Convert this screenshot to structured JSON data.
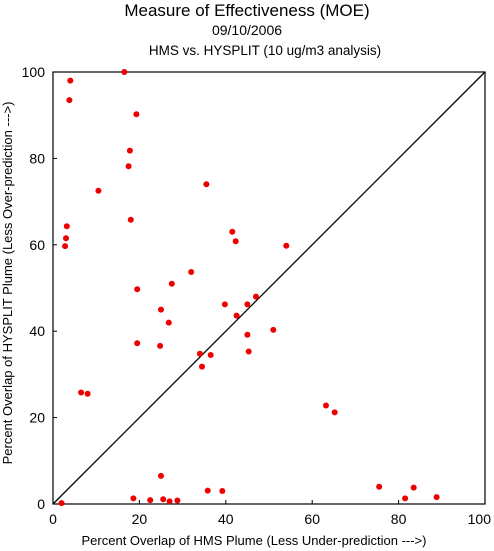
{
  "chart_data": {
    "type": "scatter",
    "title": "Measure of Effectiveness (MOE)",
    "subtitle_date": "09/10/2006",
    "subtitle": "HMS vs. HYSPLIT  (10 ug/m3 analysis)",
    "xlabel": "Percent Overlap of HMS Plume (Less Under-prediction --->)",
    "ylabel": "Percent Overlap of HYSPLIT Plume (Less Over-prediction --->)",
    "xlim": [
      0,
      100
    ],
    "ylim": [
      0,
      100
    ],
    "x_ticks": [
      "0",
      "20",
      "40",
      "60",
      "80",
      "100"
    ],
    "y_ticks": [
      "0",
      "20",
      "40",
      "60",
      "80",
      "100"
    ],
    "reference_line": "y = x diagonal",
    "point_color": "#ee0000",
    "series": [
      {
        "points": [
          [
            16.5,
            100
          ],
          [
            4,
            98
          ],
          [
            3.8,
            93.5
          ],
          [
            19.3,
            90.2
          ],
          [
            17.8,
            81.8
          ],
          [
            17.5,
            78.2
          ],
          [
            10.5,
            72.5
          ],
          [
            35.5,
            74
          ],
          [
            18,
            65.8
          ],
          [
            3.2,
            64.3
          ],
          [
            3,
            61.5
          ],
          [
            2.8,
            59.7
          ],
          [
            41.5,
            63
          ],
          [
            42.3,
            60.8
          ],
          [
            54,
            59.8
          ],
          [
            32,
            53.7
          ],
          [
            27.5,
            51
          ],
          [
            19.5,
            49.7
          ],
          [
            39.8,
            46.2
          ],
          [
            45,
            46.2
          ],
          [
            47,
            48
          ],
          [
            25,
            45
          ],
          [
            42.5,
            43.6
          ],
          [
            26.8,
            42
          ],
          [
            51,
            40.3
          ],
          [
            45,
            39.2
          ],
          [
            19.5,
            37.2
          ],
          [
            24.8,
            36.6
          ],
          [
            45.3,
            35.3
          ],
          [
            34,
            34.8
          ],
          [
            36.5,
            34.5
          ],
          [
            34.5,
            31.8
          ],
          [
            6.5,
            25.8
          ],
          [
            8,
            25.5
          ],
          [
            63.2,
            22.8
          ],
          [
            65.2,
            21.2
          ],
          [
            25,
            6.5
          ],
          [
            75.5,
            4
          ],
          [
            83.5,
            3.8
          ],
          [
            35.8,
            3.1
          ],
          [
            39.2,
            3
          ],
          [
            18.6,
            1.3
          ],
          [
            88.8,
            1.6
          ],
          [
            81.5,
            1.3
          ],
          [
            25.5,
            1.1
          ],
          [
            22.5,
            0.9
          ],
          [
            27,
            0.6
          ],
          [
            28.8,
            0.8
          ],
          [
            2,
            0.2
          ]
        ]
      }
    ]
  }
}
